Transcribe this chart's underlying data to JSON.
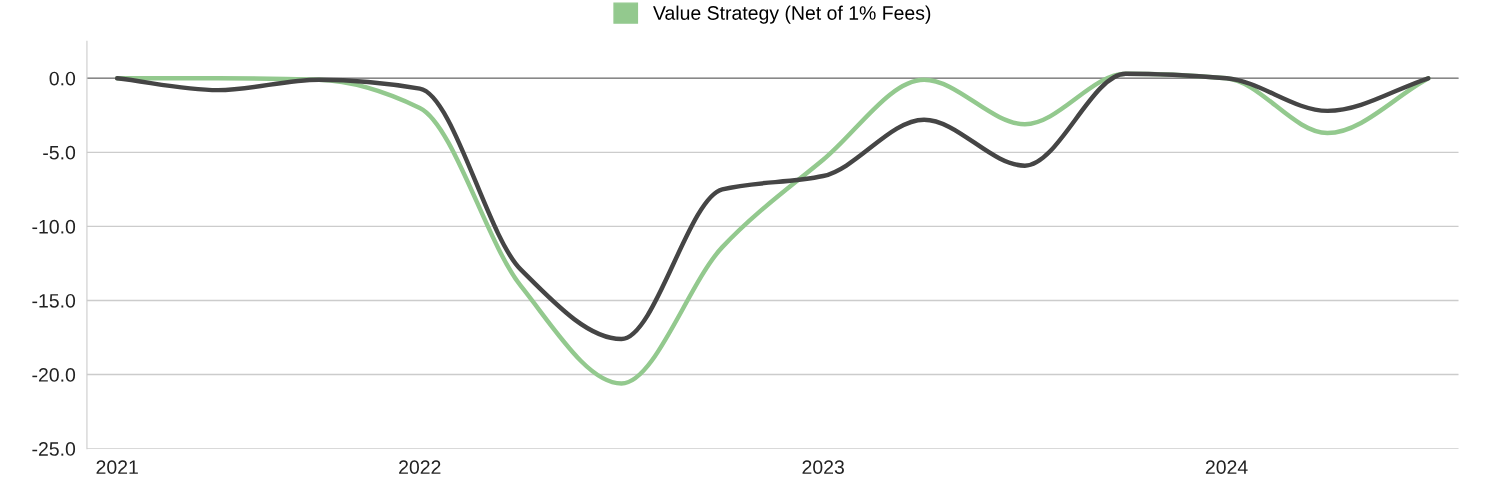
{
  "chart_data": {
    "type": "line",
    "categories": [
      "2021",
      null,
      null,
      "2022",
      null,
      null,
      null,
      "2023",
      null,
      null,
      null,
      "2024",
      null,
      null
    ],
    "series": [
      {
        "name": "Value Strategy (Net of 1% Fees)",
        "color": "#93c98e",
        "values": [
          0,
          0,
          -0.1,
          -2.0,
          -14.0,
          -20.6,
          -11.4,
          -5.5,
          -0.1,
          -3.1,
          0.3,
          0,
          -3.7,
          0
        ]
      },
      {
        "color": "#454545",
        "values": [
          0,
          -0.8,
          -0.1,
          -0.7,
          -12.9,
          -17.6,
          -7.5,
          -6.6,
          -2.8,
          -5.9,
          0.3,
          0,
          -2.2,
          0
        ]
      }
    ],
    "ylim": [
      -25,
      2.5
    ],
    "yticks": [
      {
        "value": -25,
        "label": "-25.0"
      },
      {
        "value": -20,
        "label": "-20.0"
      },
      {
        "value": -15,
        "label": "-15.0"
      },
      {
        "value": -10,
        "label": "-10.0"
      },
      {
        "value": -5,
        "label": "-5.0"
      },
      {
        "value": 0,
        "label": "0.0"
      }
    ],
    "grid": "y",
    "legend": "top",
    "marker": "none",
    "line_style": "solid"
  }
}
